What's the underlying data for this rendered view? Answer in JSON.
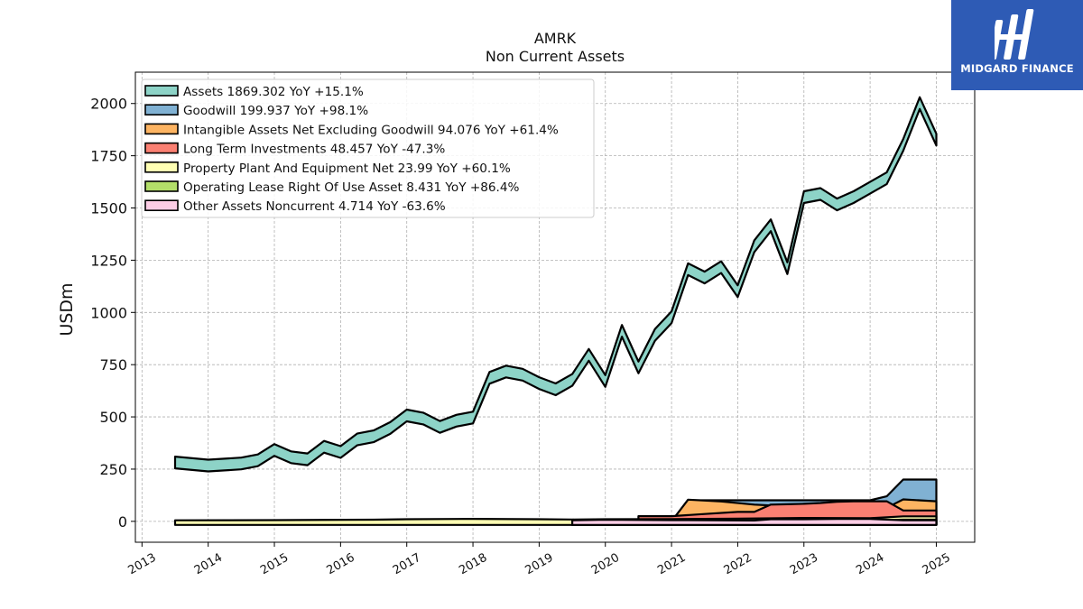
{
  "header": {
    "title": "AMRK",
    "subtitle": "Non Current  Assets"
  },
  "brand": {
    "name": "MIDGARD FINANCE",
    "icon": "midgard-logo-icon",
    "color": "#2e5bb5"
  },
  "chart_data": {
    "type": "area",
    "title": "AMRK",
    "subtitle": "Non Current  Assets",
    "ylabel": "USDm",
    "xlabel": "",
    "ylim": [
      -100,
      2150
    ],
    "xlim": [
      2012.9,
      2025.58
    ],
    "x_ticks": [
      "2013",
      "2014",
      "2015",
      "2016",
      "2017",
      "2018",
      "2019",
      "2020",
      "2021",
      "2022",
      "2023",
      "2024",
      "2025"
    ],
    "y_ticks": [
      0,
      250,
      500,
      750,
      1000,
      1250,
      1500,
      1750,
      2000
    ],
    "grid": true,
    "legend_position": "top-left",
    "series": [
      {
        "name": "Assets",
        "legend": "Assets  1869.302 YoY +15.1%",
        "color": "#8dd3c7",
        "points": [
          [
            2013.5,
            310
          ],
          [
            2014.0,
            295
          ],
          [
            2014.5,
            305
          ],
          [
            2014.75,
            320
          ],
          [
            2015.0,
            370
          ],
          [
            2015.25,
            335
          ],
          [
            2015.5,
            325
          ],
          [
            2015.75,
            385
          ],
          [
            2016.0,
            360
          ],
          [
            2016.25,
            420
          ],
          [
            2016.5,
            435
          ],
          [
            2016.75,
            475
          ],
          [
            2017.0,
            535
          ],
          [
            2017.25,
            520
          ],
          [
            2017.5,
            480
          ],
          [
            2017.75,
            510
          ],
          [
            2018.0,
            525
          ],
          [
            2018.25,
            715
          ],
          [
            2018.5,
            745
          ],
          [
            2018.75,
            730
          ],
          [
            2019.0,
            690
          ],
          [
            2019.25,
            660
          ],
          [
            2019.5,
            705
          ],
          [
            2019.75,
            825
          ],
          [
            2020.0,
            700
          ],
          [
            2020.25,
            940
          ],
          [
            2020.5,
            765
          ],
          [
            2020.75,
            920
          ],
          [
            2021.0,
            1005
          ],
          [
            2021.25,
            1235
          ],
          [
            2021.5,
            1195
          ],
          [
            2021.75,
            1245
          ],
          [
            2022.0,
            1130
          ],
          [
            2022.25,
            1345
          ],
          [
            2022.5,
            1445
          ],
          [
            2022.75,
            1240
          ],
          [
            2023.0,
            1580
          ],
          [
            2023.25,
            1595
          ],
          [
            2023.5,
            1545
          ],
          [
            2023.75,
            1580
          ],
          [
            2024.0,
            1625
          ],
          [
            2024.25,
            1670
          ],
          [
            2024.5,
            1830
          ],
          [
            2024.75,
            2030
          ],
          [
            2025.0,
            1855
          ]
        ]
      },
      {
        "name": "Goodwill",
        "legend": "Goodwill  199.937 YoY +98.1%",
        "color": "#80b1d3",
        "points": [
          [
            2021.0,
            0
          ],
          [
            2021.25,
            101
          ],
          [
            2022.5,
            101
          ],
          [
            2024.0,
            101
          ],
          [
            2024.25,
            120
          ],
          [
            2024.5,
            200
          ],
          [
            2025.0,
            200
          ]
        ]
      },
      {
        "name": "Intangible Assets Net Excluding Goodwill",
        "legend": "Intangible Assets Net Excluding Goodwill  94.076 YoY +61.4%",
        "color": "#fdb462",
        "points": [
          [
            2021.0,
            0
          ],
          [
            2021.25,
            104
          ],
          [
            2021.75,
            95
          ],
          [
            2022.25,
            80
          ],
          [
            2022.75,
            72
          ],
          [
            2023.25,
            62
          ],
          [
            2023.75,
            55
          ],
          [
            2024.0,
            55
          ],
          [
            2024.25,
            65
          ],
          [
            2024.5,
            105
          ],
          [
            2025.0,
            96
          ]
        ]
      },
      {
        "name": "Long Term Investments",
        "legend": "Long Term Investments  48.457 YoY -47.3%",
        "color": "#fb8072",
        "points": [
          [
            2020.5,
            25
          ],
          [
            2021.0,
            25
          ],
          [
            2021.5,
            35
          ],
          [
            2022.0,
            45
          ],
          [
            2022.25,
            45
          ],
          [
            2022.5,
            80
          ],
          [
            2022.75,
            82
          ],
          [
            2023.0,
            84
          ],
          [
            2023.25,
            88
          ],
          [
            2023.5,
            94
          ],
          [
            2023.75,
            96
          ],
          [
            2024.0,
            96
          ],
          [
            2024.25,
            96
          ],
          [
            2024.5,
            52
          ],
          [
            2025.0,
            52
          ]
        ]
      },
      {
        "name": "Property Plant And Equipment Net",
        "legend": "Property Plant And Equipment Net  23.99 YoY +60.1%",
        "color": "#ffffb3",
        "points": [
          [
            2013.5,
            5
          ],
          [
            2015.0,
            6
          ],
          [
            2016.5,
            8
          ],
          [
            2017.0,
            10
          ],
          [
            2018.0,
            12
          ],
          [
            2019.0,
            10
          ],
          [
            2019.5,
            9
          ],
          [
            2020.0,
            10
          ],
          [
            2021.0,
            11
          ],
          [
            2022.0,
            13
          ],
          [
            2023.0,
            16
          ],
          [
            2024.0,
            15
          ],
          [
            2024.5,
            24
          ],
          [
            2025.0,
            24
          ]
        ]
      },
      {
        "name": "Operating Lease Right Of Use Asset",
        "legend": "Operating Lease Right Of Use Asset  8.431 YoY +86.4%",
        "color": "#b3de69",
        "points": [
          [
            2019.5,
            0
          ],
          [
            2020.0,
            2
          ],
          [
            2021.0,
            3
          ],
          [
            2022.0,
            4
          ],
          [
            2023.0,
            5
          ],
          [
            2024.0,
            5
          ],
          [
            2024.5,
            8
          ],
          [
            2025.0,
            8
          ]
        ]
      },
      {
        "name": "Other Assets Noncurrent",
        "legend": "Other Assets Noncurrent  4.714 YoY -63.6%",
        "color": "#fccde5",
        "points": [
          [
            2019.5,
            5
          ],
          [
            2020.0,
            8
          ],
          [
            2021.0,
            6
          ],
          [
            2022.25,
            4
          ],
          [
            2022.5,
            10
          ],
          [
            2023.0,
            10
          ],
          [
            2023.5,
            12
          ],
          [
            2024.0,
            12
          ],
          [
            2024.5,
            5
          ],
          [
            2025.0,
            5
          ]
        ]
      }
    ]
  }
}
